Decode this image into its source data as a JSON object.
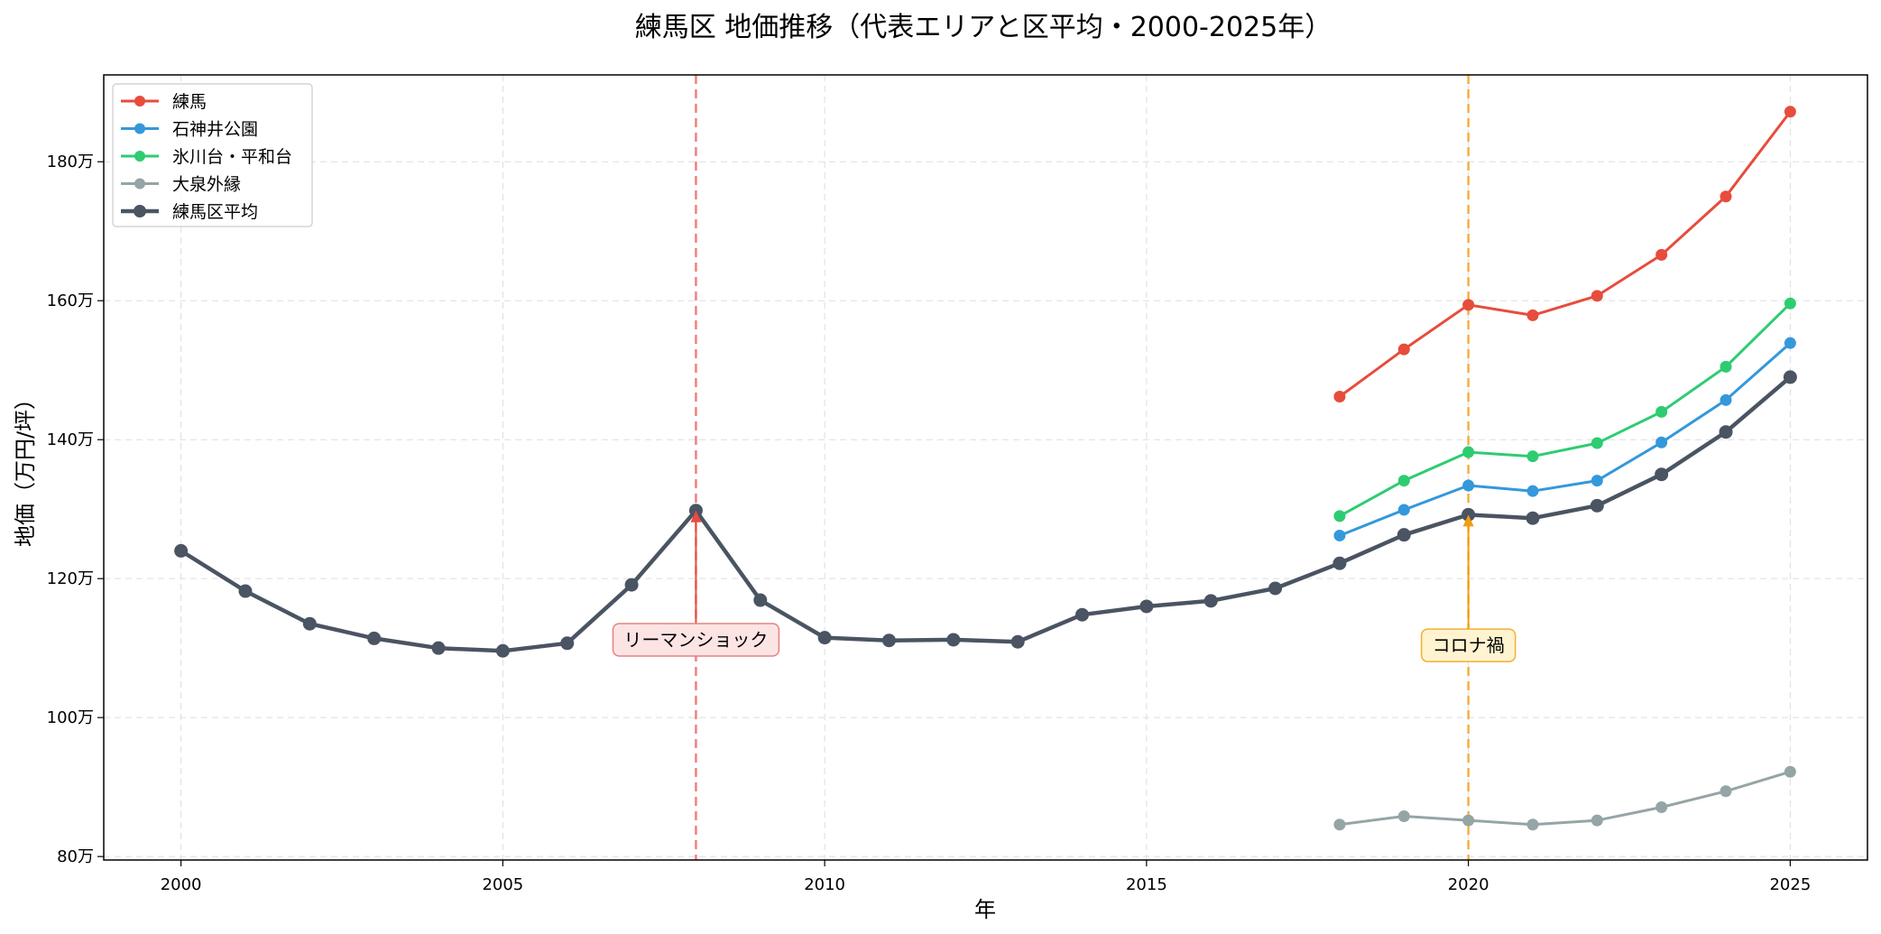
{
  "chart_data": {
    "type": "line",
    "title": "練馬区 地価推移（代表エリアと区平均・2000-2025年）",
    "xlabel": "年",
    "ylabel": "地価（万円/坪）",
    "xlim": [
      1998.8,
      2026.2
    ],
    "ylim": [
      79.5,
      192.5
    ],
    "x_ticks": [
      2000,
      2005,
      2010,
      2015,
      2020,
      2025
    ],
    "x_tick_labels": [
      "2000",
      "2005",
      "2010",
      "2015",
      "2020",
      "2025"
    ],
    "y_ticks": [
      80,
      100,
      120,
      140,
      160,
      180
    ],
    "y_tick_labels": [
      "80万",
      "100万",
      "120万",
      "140万",
      "160万",
      "180万"
    ],
    "grid": true,
    "legend_position": "top-left",
    "series": [
      {
        "name": "練馬",
        "color": "#e74c3c",
        "width": 3,
        "x": [
          2018,
          2019,
          2020,
          2021,
          2022,
          2023,
          2024,
          2025
        ],
        "values": [
          146.2,
          153.0,
          159.4,
          157.9,
          160.7,
          166.6,
          175.0,
          187.2
        ]
      },
      {
        "name": "石神井公園",
        "color": "#3498db",
        "width": 3,
        "x": [
          2018,
          2019,
          2020,
          2021,
          2022,
          2023,
          2024,
          2025
        ],
        "values": [
          126.2,
          129.9,
          133.4,
          132.6,
          134.1,
          139.6,
          145.7,
          153.9
        ]
      },
      {
        "name": "氷川台・平和台",
        "color": "#2ecc71",
        "width": 3,
        "x": [
          2018,
          2019,
          2020,
          2021,
          2022,
          2023,
          2024,
          2025
        ],
        "values": [
          129.0,
          134.1,
          138.2,
          137.6,
          139.5,
          144.0,
          150.5,
          159.6
        ]
      },
      {
        "name": "大泉外縁",
        "color": "#95a5a6",
        "width": 3,
        "x": [
          2018,
          2019,
          2020,
          2021,
          2022,
          2023,
          2024,
          2025
        ],
        "values": [
          84.6,
          85.8,
          85.2,
          84.6,
          85.2,
          87.1,
          89.4,
          92.2
        ]
      },
      {
        "name": "練馬区平均",
        "color": "#4a5462",
        "width": 4.5,
        "x": [
          2000,
          2001,
          2002,
          2003,
          2004,
          2005,
          2006,
          2007,
          2008,
          2009,
          2010,
          2011,
          2012,
          2013,
          2014,
          2015,
          2016,
          2017,
          2018,
          2019,
          2020,
          2021,
          2022,
          2023,
          2024,
          2025
        ],
        "values": [
          124.0,
          118.2,
          113.5,
          111.4,
          110.0,
          109.6,
          110.7,
          119.1,
          129.8,
          116.9,
          111.5,
          111.1,
          111.2,
          110.9,
          114.8,
          116.0,
          116.8,
          118.6,
          122.2,
          126.3,
          129.2,
          128.7,
          130.5,
          135.0,
          141.1,
          149.0
        ]
      }
    ],
    "vlines": [
      {
        "x": 2008,
        "color": "#f08080"
      },
      {
        "x": 2020,
        "color": "#f5b041"
      }
    ],
    "annotations": [
      {
        "text": "リーマンショック",
        "x": 2008,
        "y": 129.8,
        "text_y": 111.2,
        "box_fill": "#fde4e4",
        "box_stroke": "#e88080",
        "arrow_color": "#e74c3c"
      },
      {
        "text": "コロナ禍",
        "x": 2020,
        "y": 129.2,
        "text_y": 110.4,
        "box_fill": "#fff3d0",
        "box_stroke": "#f0b030",
        "arrow_color": "#f39c12"
      }
    ]
  }
}
